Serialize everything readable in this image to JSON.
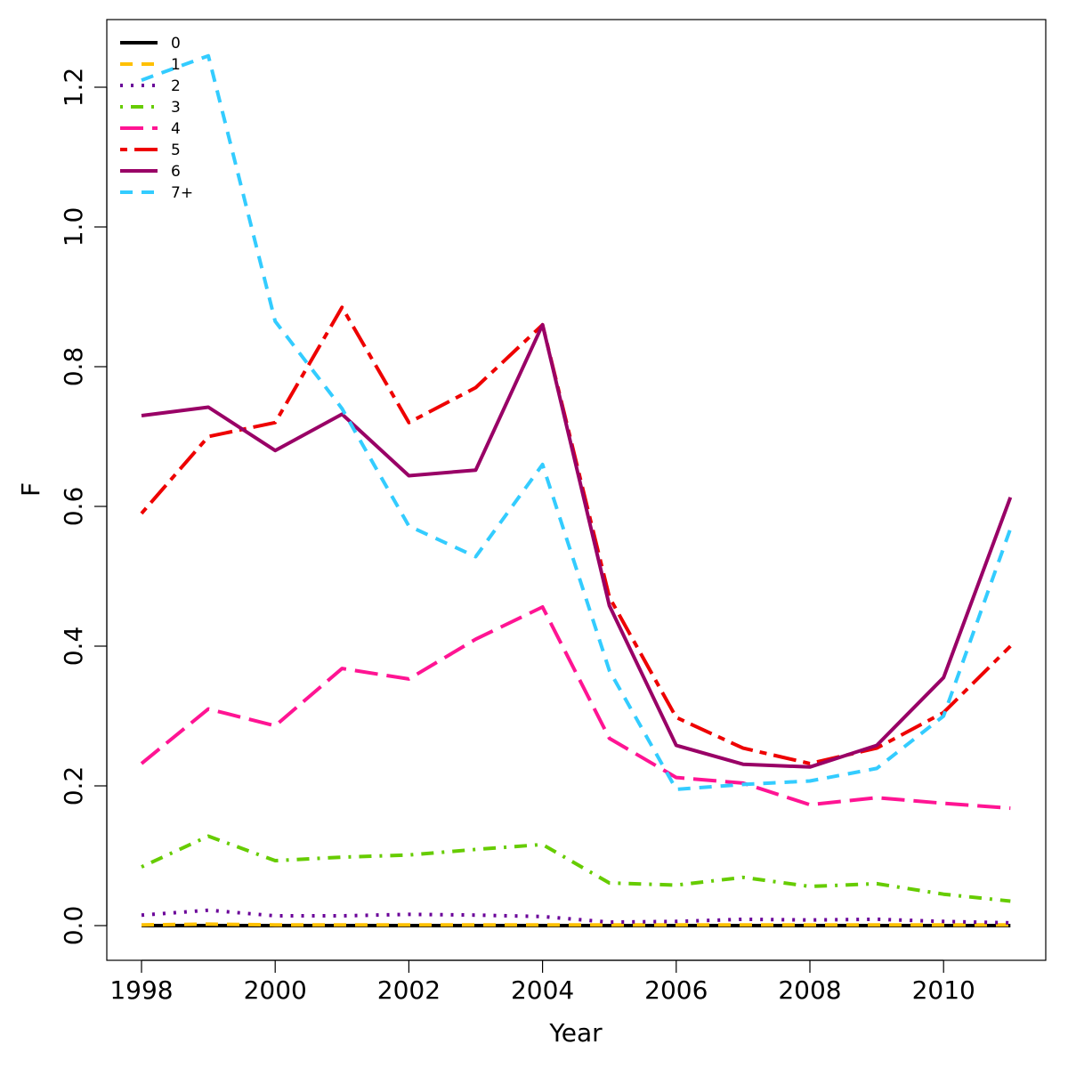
{
  "chart_data": {
    "type": "line",
    "title": "",
    "xlabel": "Year",
    "ylabel": "F",
    "xlim": [
      1997.5,
      2011.5
    ],
    "ylim": [
      -0.05,
      1.3
    ],
    "x_ticks": [
      1998,
      2000,
      2002,
      2004,
      2006,
      2008,
      2010
    ],
    "x_tick_labels": [
      "1998",
      "2000",
      "2002",
      "2004",
      "2006",
      "2008",
      "2010"
    ],
    "y_ticks": [
      0.0,
      0.2,
      0.4,
      0.6,
      0.8,
      1.0,
      1.2
    ],
    "y_tick_labels": [
      "0.0",
      "0.2",
      "0.4",
      "0.6",
      "0.8",
      "1.0",
      "1.2"
    ],
    "grid": false,
    "legend_position": "top-left",
    "x": [
      1998,
      1999,
      2000,
      2001,
      2002,
      2003,
      2004,
      2005,
      2006,
      2007,
      2008,
      2009,
      2010,
      2011
    ],
    "series": [
      {
        "name": "0",
        "color": "#000000",
        "dash": "solid",
        "values": [
          0,
          0,
          0,
          0,
          0,
          0,
          0,
          0,
          0,
          0,
          0,
          0,
          0,
          0
        ]
      },
      {
        "name": "1",
        "color": "#FFC000",
        "dash": "dashed",
        "values": [
          0.001,
          0.002,
          0.001,
          0.001,
          0.001,
          0.001,
          0.001,
          0.001,
          0.001,
          0.001,
          0.001,
          0.001,
          0.001,
          0.001
        ]
      },
      {
        "name": "2",
        "color": "#6A0099",
        "dash": "dotted",
        "values": [
          0.015,
          0.022,
          0.014,
          0.014,
          0.016,
          0.015,
          0.013,
          0.005,
          0.006,
          0.009,
          0.008,
          0.009,
          0.006,
          0.004
        ]
      },
      {
        "name": "3",
        "color": "#66CC00",
        "dash": "dotdash",
        "values": [
          0.084,
          0.128,
          0.093,
          0.098,
          0.101,
          0.109,
          0.116,
          0.061,
          0.058,
          0.069,
          0.056,
          0.06,
          0.045,
          0.035
        ]
      },
      {
        "name": "4",
        "color": "#FF1493",
        "dash": "longdash",
        "values": [
          0.232,
          0.31,
          0.286,
          0.368,
          0.353,
          0.41,
          0.456,
          0.268,
          0.212,
          0.204,
          0.173,
          0.183,
          0.175,
          0.168
        ]
      },
      {
        "name": "5",
        "color": "#EE0000",
        "dash": "twodash",
        "values": [
          0.59,
          0.7,
          0.72,
          0.885,
          0.72,
          0.77,
          0.86,
          0.47,
          0.298,
          0.254,
          0.232,
          0.254,
          0.305,
          0.4
        ]
      },
      {
        "name": "6",
        "color": "#990066",
        "dash": "solid",
        "values": [
          0.73,
          0.742,
          0.68,
          0.732,
          0.644,
          0.652,
          0.86,
          0.458,
          0.258,
          0.231,
          0.227,
          0.258,
          0.355,
          0.613
        ]
      },
      {
        "name": "7+",
        "color": "#33CCFF",
        "dash": "dashed",
        "values": [
          1.21,
          1.245,
          0.865,
          0.74,
          0.572,
          0.528,
          0.66,
          0.365,
          0.195,
          0.202,
          0.207,
          0.225,
          0.3,
          0.568
        ]
      }
    ]
  }
}
